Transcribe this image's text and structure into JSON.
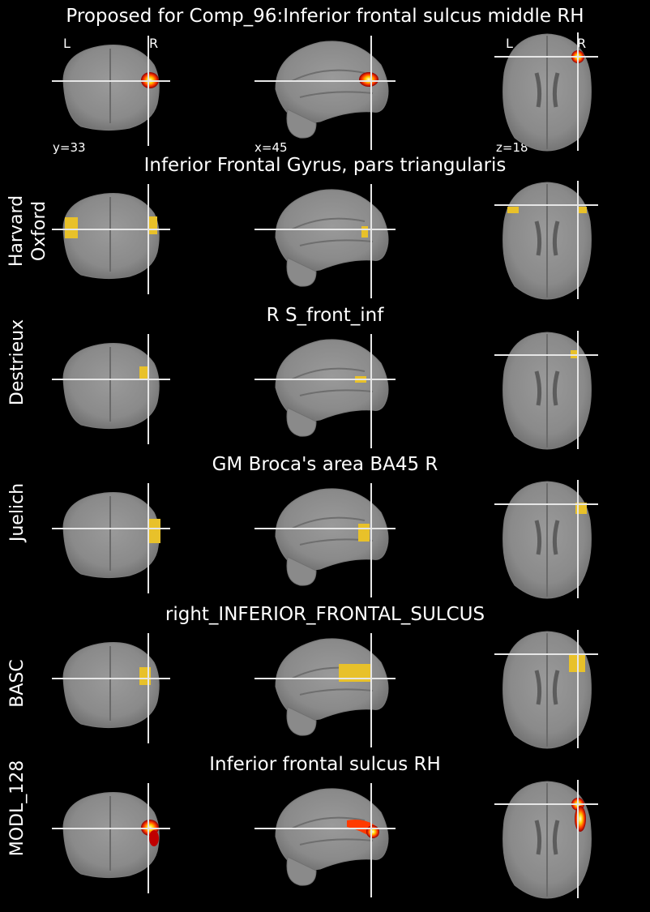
{
  "figure": {
    "main_title": "Proposed for Comp_96:Inferior frontal sulcus middle RH",
    "orientation_left": "L",
    "orientation_right": "R",
    "coord_coronal": "y=33",
    "coord_sagittal": "x=45",
    "coord_axial": "z=18"
  },
  "colors": {
    "background": "#000000",
    "atlas_region": "#e8c12a",
    "proposed_hot": "#ff3a00",
    "crosshair": "#e6e6e6"
  },
  "rows": [
    {
      "label": "",
      "title": "Proposed for Comp_96:Inferior frontal sulcus middle RH",
      "overlay": "hot"
    },
    {
      "label": "Harvard Oxford",
      "title": "Inferior Frontal Gyrus, pars triangularis",
      "overlay": "atlas"
    },
    {
      "label": "Destrieux",
      "title": "R S_front_inf",
      "overlay": "atlas"
    },
    {
      "label": "Juelich",
      "title": "GM Broca's area BA45 R",
      "overlay": "atlas"
    },
    {
      "label": "BASC",
      "title": "right_INFERIOR_FRONTAL_SULCUS",
      "overlay": "atlas"
    },
    {
      "label": "MODL_128",
      "title": "Inferior frontal sulcus RH",
      "overlay": "hot"
    }
  ]
}
